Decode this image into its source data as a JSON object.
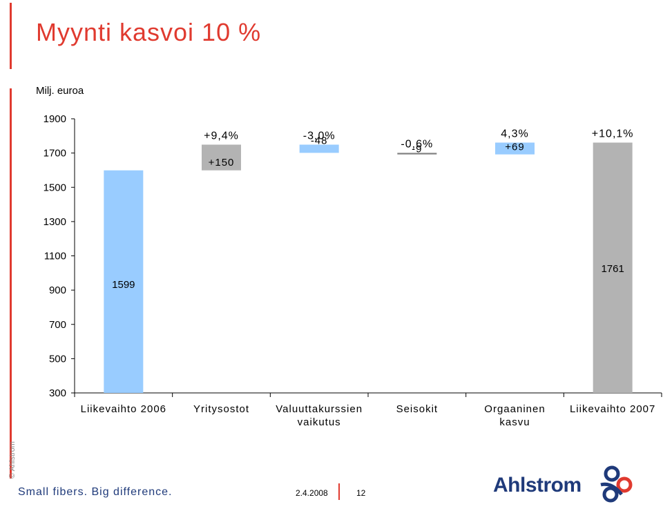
{
  "slide": {
    "title": "Myynti kasvoi 10 %",
    "unit_label": "Milj. euroa",
    "copyright": "© Ahlstrom",
    "tagline": "Small fibers. Big difference.",
    "date": "2.4.2008",
    "page_number": "12",
    "logo_text": "Ahlstrom"
  },
  "colors": {
    "accent": "#e03a2f",
    "bar_blue": "#99ccff",
    "bar_gray": "#b3b3b3",
    "brand_blue": "#1f3a7a"
  },
  "chart_data": {
    "type": "bar",
    "subtype": "waterfall",
    "title": "",
    "ylabel": "Milj. euroa",
    "ylim": [
      300,
      1900
    ],
    "yticks": [
      "300",
      "500",
      "700",
      "900",
      "1100",
      "1300",
      "1500",
      "1700",
      "1900"
    ],
    "grid": false,
    "categories": [
      [
        "Liikevaihto 2006"
      ],
      [
        "Yritysostot"
      ],
      [
        "Valuuttakurssien",
        "vaikutus"
      ],
      [
        "Seisokit"
      ],
      [
        "Orgaaninen",
        "kasvu"
      ],
      [
        "Liikevaihto 2007"
      ]
    ],
    "bars": [
      {
        "start": 300,
        "end": 1599,
        "color": "#99ccff",
        "value_label": "1599",
        "pct_label": ""
      },
      {
        "start": 1599,
        "end": 1749,
        "color": "#b3b3b3",
        "value_label": "+150",
        "pct_label": "+9,4%"
      },
      {
        "start": 1749,
        "end": 1701,
        "color": "#99ccff",
        "value_label": "-48",
        "pct_label": "-3,0%"
      },
      {
        "start": 1701,
        "end": 1692,
        "color": "#808080",
        "value_label": "-9",
        "pct_label": "-0,6%"
      },
      {
        "start": 1692,
        "end": 1761,
        "color": "#99ccff",
        "value_label": "+69",
        "pct_label": "4,3%"
      },
      {
        "start": 300,
        "end": 1761,
        "color": "#b3b3b3",
        "value_label": "1761",
        "pct_label": "+10,1%"
      }
    ]
  }
}
